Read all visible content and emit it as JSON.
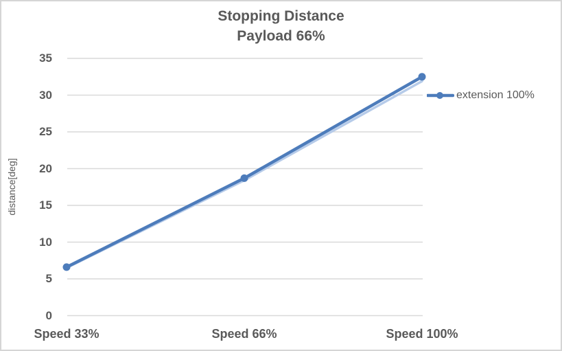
{
  "frame": {
    "background": "#ffffff",
    "border_color": "#d5d5d5"
  },
  "chart_data": {
    "type": "line",
    "title": "Stopping Distance",
    "subtitle": "Payload 66%",
    "ylabel": "distance[deg]",
    "xlabel": "",
    "categories": [
      "Speed 33%",
      "Speed 66%",
      "Speed 100%"
    ],
    "series": [
      {
        "name": "extension 100%",
        "values": [
          6.6,
          18.7,
          32.5
        ],
        "color": "#4d7cbb",
        "marker": "circle"
      }
    ],
    "shadow_series": {
      "values": [
        6.5,
        18.4,
        31.9
      ],
      "color": "#b6cbe9"
    },
    "yticks": [
      0,
      5,
      10,
      15,
      20,
      25,
      30,
      35
    ],
    "ylim": [
      0,
      35
    ],
    "grid": "horizontal",
    "gridline_color": "#d9d9d9",
    "legend_position": "right",
    "text_color": "#595959"
  }
}
